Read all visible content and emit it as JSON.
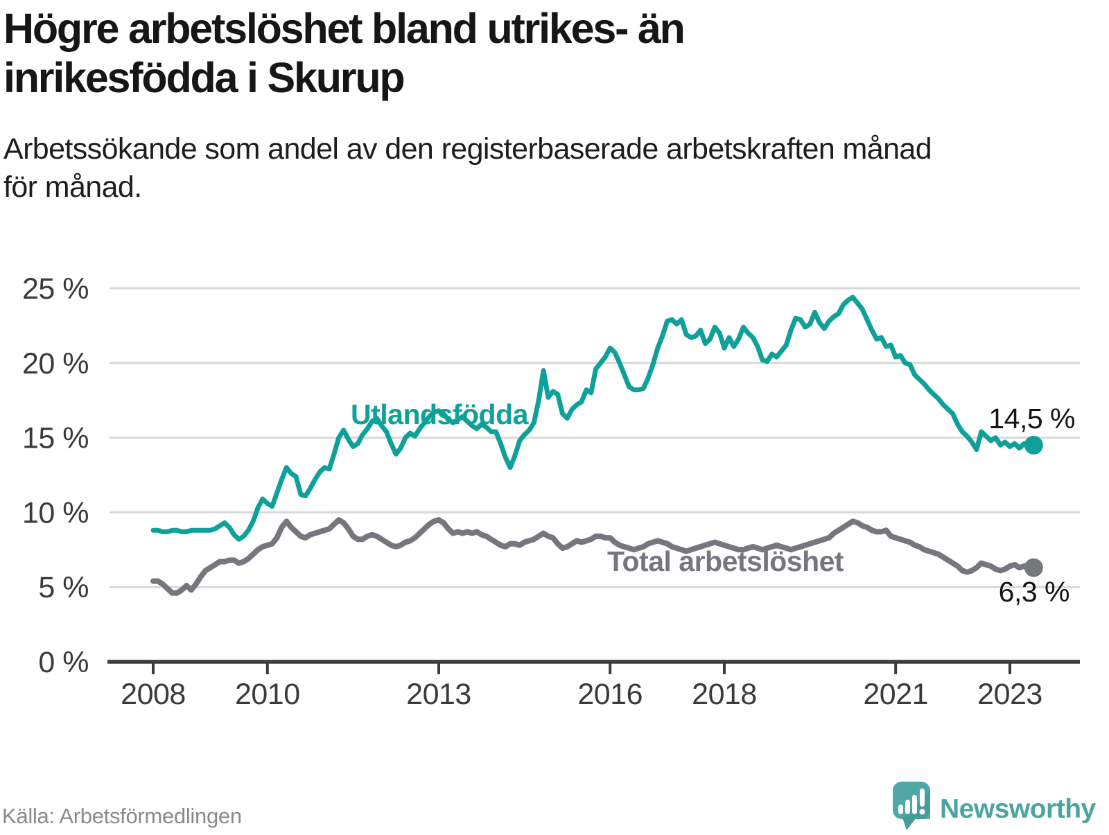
{
  "title": "Högre arbetslöshet bland utrikes- än\ninrikesfödda i Skurup",
  "subtitle": "Arbetssökande som andel av den registerbaserade arbetskraften månad\nför månad.",
  "source": "Källa: Arbetsförmedlingen",
  "branding": {
    "wordmark": "Newsworthy",
    "logo_icon": "speech-bubble-bar-chart-icon",
    "logo_color": "#4FA8A4",
    "wordmark_color": "#4BA4A0"
  },
  "colors": {
    "utlandsfodda_line": "#10A09A",
    "total_line": "#76767E",
    "gridline": "#D8D8D8",
    "axis": "#3C3C3F",
    "axis_text": "#3A3A3A",
    "value_text": "#141414"
  },
  "chart_data": {
    "type": "line",
    "x_unit": "month",
    "x_range": [
      "2008-01",
      "2023-06"
    ],
    "x_tick_years": [
      2008,
      2010,
      2013,
      2016,
      2018,
      2021,
      2023
    ],
    "x_tick_labels": [
      "2008",
      "2010",
      "2013",
      "2016",
      "2018",
      "2021",
      "2023"
    ],
    "y_ticks": [
      0,
      5,
      10,
      15,
      20,
      25
    ],
    "y_tick_labels": [
      "0 %",
      "5 %",
      "10 %",
      "15 %",
      "20 %",
      "25 %"
    ],
    "ylim": [
      0,
      26.6
    ],
    "grid": "horizontal",
    "legend": "inline-labels",
    "series": [
      {
        "name": "Utlandsfödda",
        "color": "#10A09A",
        "end_value": 14.5,
        "end_label": "14,5 %",
        "values": [
          8.8,
          8.8,
          8.7,
          8.7,
          8.8,
          8.8,
          8.7,
          8.7,
          8.8,
          8.8,
          8.8,
          8.8,
          8.8,
          8.9,
          9.1,
          9.3,
          9.0,
          8.5,
          8.2,
          8.4,
          8.8,
          9.4,
          10.3,
          10.9,
          10.6,
          10.4,
          11.3,
          12.2,
          13.0,
          12.6,
          12.4,
          11.2,
          11.1,
          11.6,
          12.2,
          12.7,
          13.0,
          12.9,
          13.9,
          15.0,
          15.5,
          14.9,
          14.4,
          14.6,
          15.2,
          15.6,
          16.1,
          16.3,
          15.8,
          15.4,
          14.6,
          13.9,
          14.3,
          15.0,
          15.3,
          15.1,
          15.6,
          16.0,
          16.4,
          16.7,
          16.8,
          16.6,
          16.2,
          16.0,
          16.2,
          16.4,
          16.1,
          15.8,
          15.6,
          15.9,
          15.7,
          15.4,
          15.4,
          14.6,
          13.7,
          13.0,
          13.8,
          14.8,
          15.2,
          15.5,
          16.0,
          17.5,
          19.5,
          17.7,
          18.1,
          17.9,
          16.6,
          16.3,
          16.9,
          17.2,
          17.4,
          18.2,
          18.0,
          19.6,
          20.0,
          20.4,
          21.0,
          20.7,
          20.0,
          19.2,
          18.4,
          18.2,
          18.2,
          18.3,
          19.0,
          19.9,
          21.0,
          21.8,
          22.8,
          22.9,
          22.6,
          22.9,
          21.9,
          21.7,
          21.8,
          22.2,
          21.3,
          21.6,
          22.4,
          22.0,
          21.0,
          21.7,
          21.1,
          21.6,
          22.4,
          22.0,
          21.7,
          21.1,
          20.2,
          20.1,
          20.6,
          20.4,
          20.8,
          21.2,
          22.2,
          23.0,
          22.9,
          22.4,
          22.6,
          23.4,
          22.7,
          22.3,
          22.8,
          23.1,
          23.3,
          23.9,
          24.2,
          24.4,
          24.0,
          23.6,
          22.9,
          22.2,
          21.6,
          21.7,
          21.1,
          21.2,
          20.4,
          20.5,
          20.0,
          19.9,
          19.2,
          18.9,
          18.6,
          18.2,
          17.9,
          17.6,
          17.2,
          16.9,
          16.6,
          15.9,
          15.4,
          15.1,
          14.7,
          14.2,
          15.4,
          15.1,
          14.8,
          15.0,
          14.5,
          14.7,
          14.4,
          14.6,
          14.3,
          14.6,
          14.4,
          14.5
        ]
      },
      {
        "name": "Total arbetslöshet",
        "color": "#76767E",
        "end_value": 6.3,
        "end_label": "6,3 %",
        "values": [
          5.4,
          5.4,
          5.2,
          4.9,
          4.6,
          4.6,
          4.8,
          5.1,
          4.8,
          5.2,
          5.7,
          6.1,
          6.3,
          6.5,
          6.7,
          6.7,
          6.8,
          6.8,
          6.6,
          6.7,
          6.9,
          7.2,
          7.5,
          7.7,
          7.8,
          7.9,
          8.3,
          9.0,
          9.4,
          9.0,
          8.7,
          8.4,
          8.3,
          8.5,
          8.6,
          8.7,
          8.8,
          8.9,
          9.2,
          9.5,
          9.3,
          8.9,
          8.4,
          8.2,
          8.2,
          8.4,
          8.5,
          8.4,
          8.2,
          8.0,
          7.8,
          7.7,
          7.8,
          8.0,
          8.1,
          8.3,
          8.6,
          8.9,
          9.2,
          9.4,
          9.5,
          9.3,
          8.9,
          8.6,
          8.7,
          8.6,
          8.7,
          8.6,
          8.7,
          8.5,
          8.4,
          8.2,
          8.0,
          7.8,
          7.7,
          7.9,
          7.9,
          7.8,
          8.0,
          8.1,
          8.2,
          8.4,
          8.6,
          8.4,
          8.3,
          7.9,
          7.6,
          7.7,
          7.9,
          8.1,
          8.0,
          8.1,
          8.2,
          8.4,
          8.4,
          8.3,
          8.3,
          8.0,
          7.8,
          7.7,
          7.6,
          7.5,
          7.6,
          7.7,
          7.9,
          8.0,
          8.1,
          8.0,
          7.9,
          7.7,
          7.6,
          7.5,
          7.4,
          7.5,
          7.6,
          7.7,
          7.8,
          7.9,
          8.0,
          7.9,
          7.8,
          7.7,
          7.6,
          7.5,
          7.5,
          7.6,
          7.7,
          7.6,
          7.5,
          7.6,
          7.7,
          7.8,
          7.7,
          7.6,
          7.5,
          7.6,
          7.7,
          7.8,
          7.9,
          8.0,
          8.1,
          8.2,
          8.3,
          8.6,
          8.8,
          9.0,
          9.2,
          9.4,
          9.3,
          9.1,
          9.0,
          8.8,
          8.7,
          8.7,
          8.8,
          8.4,
          8.3,
          8.2,
          8.1,
          8.0,
          7.8,
          7.7,
          7.5,
          7.4,
          7.3,
          7.2,
          7.0,
          6.8,
          6.6,
          6.4,
          6.1,
          6.0,
          6.1,
          6.3,
          6.6,
          6.5,
          6.4,
          6.2,
          6.1,
          6.2,
          6.4,
          6.5,
          6.3,
          6.4,
          6.5,
          6.3
        ]
      }
    ]
  }
}
